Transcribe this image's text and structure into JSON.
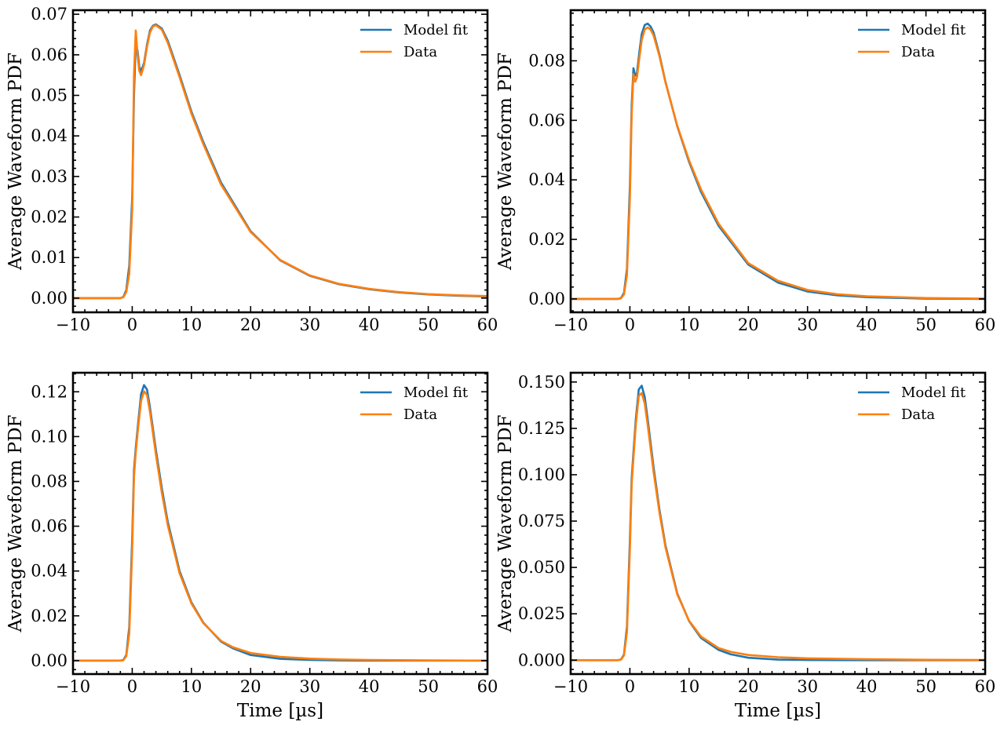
{
  "figure": {
    "title": ""
  },
  "colors": {
    "model": "#1f77b4",
    "data": "#ff7f0e",
    "axis": "#000000",
    "background": "#ffffff"
  },
  "chart_data": [
    {
      "id": "top-left",
      "type": "line",
      "title": "",
      "xlabel": "",
      "ylabel": "Average Waveform PDF",
      "xlim": [
        -10,
        60
      ],
      "ylim": [
        -0.0035,
        0.071
      ],
      "xticks": [
        -10,
        0,
        10,
        20,
        30,
        40,
        50,
        60
      ],
      "xtick_labels": [
        "−10",
        "0",
        "10",
        "20",
        "30",
        "40",
        "50",
        "60"
      ],
      "yticks": [
        0.0,
        0.01,
        0.02,
        0.03,
        0.04,
        0.05,
        0.06,
        0.07
      ],
      "ytick_labels": [
        "0.00",
        "0.01",
        "0.02",
        "0.03",
        "0.04",
        "0.05",
        "0.06",
        "0.07"
      ],
      "legend": {
        "position": "top-right",
        "entries": [
          "Model fit",
          "Data"
        ]
      },
      "grid": false,
      "series": [
        {
          "name": "Model fit",
          "color": "#1f77b4",
          "x": [
            -10,
            -2,
            -1.5,
            -1,
            -0.5,
            0,
            0.3,
            0.6,
            0.9,
            1.2,
            1.5,
            2,
            2.5,
            3,
            3.5,
            4,
            5,
            6,
            8,
            10,
            12,
            15,
            20,
            25,
            30,
            35,
            40,
            45,
            50,
            55,
            60
          ],
          "values": [
            0,
            0,
            0.0003,
            0.002,
            0.008,
            0.025,
            0.05,
            0.063,
            0.061,
            0.057,
            0.056,
            0.058,
            0.0625,
            0.066,
            0.0672,
            0.0675,
            0.0665,
            0.0635,
            0.055,
            0.046,
            0.0385,
            0.0285,
            0.0165,
            0.0093,
            0.0055,
            0.0034,
            0.0022,
            0.0014,
            0.0009,
            0.0006,
            0.0004
          ]
        },
        {
          "name": "Data",
          "color": "#ff7f0e",
          "x": [
            -10,
            -2,
            -1.5,
            -1,
            -0.5,
            0,
            0.3,
            0.6,
            0.9,
            1.2,
            1.5,
            2,
            2.5,
            3,
            3.5,
            4,
            5,
            6,
            8,
            10,
            12,
            15,
            20,
            25,
            30,
            35,
            40,
            45,
            50,
            55,
            60
          ],
          "values": [
            0,
            0,
            0.0002,
            0.0015,
            0.006,
            0.022,
            0.055,
            0.066,
            0.06,
            0.056,
            0.055,
            0.0575,
            0.062,
            0.0655,
            0.067,
            0.0673,
            0.0662,
            0.063,
            0.0545,
            0.0455,
            0.038,
            0.028,
            0.0163,
            0.0094,
            0.0056,
            0.0035,
            0.0023,
            0.0015,
            0.001,
            0.0007,
            0.0005
          ]
        }
      ]
    },
    {
      "id": "top-right",
      "type": "line",
      "title": "",
      "xlabel": "",
      "ylabel": "Average Waveform PDF",
      "xlim": [
        -10,
        60
      ],
      "ylim": [
        -0.0045,
        0.097
      ],
      "xticks": [
        -10,
        0,
        10,
        20,
        30,
        40,
        50,
        60
      ],
      "xtick_labels": [
        "−10",
        "0",
        "10",
        "20",
        "30",
        "40",
        "50",
        "60"
      ],
      "yticks": [
        0.0,
        0.02,
        0.04,
        0.06,
        0.08
      ],
      "ytick_labels": [
        "0.00",
        "0.02",
        "0.04",
        "0.06",
        "0.08"
      ],
      "legend": {
        "position": "top-right",
        "entries": [
          "Model fit",
          "Data"
        ]
      },
      "grid": false,
      "series": [
        {
          "name": "Model fit",
          "color": "#1f77b4",
          "x": [
            -10,
            -2,
            -1.5,
            -1,
            -0.5,
            0,
            0.3,
            0.6,
            0.9,
            1.2,
            1.6,
            2,
            2.5,
            3,
            3.5,
            4,
            5,
            6,
            8,
            10,
            12,
            15,
            20,
            25,
            30,
            35,
            40,
            50,
            60
          ],
          "values": [
            0,
            0,
            0.0003,
            0.002,
            0.01,
            0.038,
            0.065,
            0.0775,
            0.075,
            0.076,
            0.083,
            0.089,
            0.092,
            0.0925,
            0.0915,
            0.0895,
            0.082,
            0.073,
            0.058,
            0.046,
            0.036,
            0.0245,
            0.0115,
            0.0055,
            0.0025,
            0.0012,
            0.0006,
            0.0001,
            0
          ]
        },
        {
          "name": "Data",
          "color": "#ff7f0e",
          "x": [
            -10,
            -2,
            -1.5,
            -1,
            -0.5,
            0,
            0.3,
            0.6,
            0.9,
            1.2,
            1.6,
            2,
            2.5,
            3,
            3.5,
            4,
            5,
            6,
            8,
            10,
            12,
            15,
            20,
            25,
            30,
            35,
            40,
            50,
            60
          ],
          "values": [
            0,
            0,
            0.0002,
            0.0015,
            0.008,
            0.034,
            0.062,
            0.0755,
            0.073,
            0.0745,
            0.081,
            0.087,
            0.0905,
            0.0912,
            0.0905,
            0.0885,
            0.0815,
            0.0728,
            0.0582,
            0.0465,
            0.0368,
            0.0252,
            0.012,
            0.0061,
            0.003,
            0.0016,
            0.0009,
            0.0003,
            0.0001
          ]
        }
      ]
    },
    {
      "id": "bottom-left",
      "type": "line",
      "title": "",
      "xlabel": "Time [µs]",
      "ylabel": "Average Waveform PDF",
      "xlim": [
        -10,
        60
      ],
      "ylim": [
        -0.006,
        0.1285
      ],
      "xticks": [
        -10,
        0,
        10,
        20,
        30,
        40,
        50,
        60
      ],
      "xtick_labels": [
        "−10",
        "0",
        "10",
        "20",
        "30",
        "40",
        "50",
        "60"
      ],
      "yticks": [
        0.0,
        0.02,
        0.04,
        0.06,
        0.08,
        0.1,
        0.12
      ],
      "ytick_labels": [
        "0.00",
        "0.02",
        "0.04",
        "0.06",
        "0.08",
        "0.10",
        "0.12"
      ],
      "legend": {
        "position": "top-right",
        "entries": [
          "Model fit",
          "Data"
        ]
      },
      "grid": false,
      "series": [
        {
          "name": "Model fit",
          "color": "#1f77b4",
          "x": [
            -10,
            -2,
            -1.5,
            -1,
            -0.5,
            0,
            0.3,
            0.6,
            1,
            1.5,
            2,
            2.5,
            3,
            4,
            5,
            6,
            8,
            10,
            12,
            15,
            17,
            20,
            25,
            30,
            35,
            40,
            50,
            60
          ],
          "values": [
            0,
            0,
            0.0003,
            0.0025,
            0.015,
            0.055,
            0.085,
            0.095,
            0.106,
            0.119,
            0.123,
            0.121,
            0.113,
            0.094,
            0.077,
            0.062,
            0.04,
            0.026,
            0.017,
            0.0085,
            0.0055,
            0.0025,
            0.0008,
            0.0003,
            0.0001,
            0,
            0,
            0
          ]
        },
        {
          "name": "Data",
          "color": "#ff7f0e",
          "x": [
            -10,
            -2,
            -1.5,
            -1,
            -0.5,
            0,
            0.3,
            0.6,
            1,
            1.5,
            2,
            2.5,
            3,
            4,
            5,
            6,
            8,
            10,
            12,
            15,
            17,
            20,
            25,
            30,
            35,
            40,
            50,
            60
          ],
          "values": [
            0,
            0,
            0.0002,
            0.002,
            0.012,
            0.05,
            0.082,
            0.093,
            0.104,
            0.116,
            0.1202,
            0.1185,
            0.111,
            0.092,
            0.075,
            0.0605,
            0.039,
            0.0255,
            0.0168,
            0.0088,
            0.006,
            0.0034,
            0.0017,
            0.0009,
            0.0005,
            0.0003,
            0.0001,
            0
          ]
        }
      ]
    },
    {
      "id": "bottom-right",
      "type": "line",
      "title": "",
      "xlabel": "Time [µs]",
      "ylabel": "Average Waveform PDF",
      "xlim": [
        -10,
        60
      ],
      "ylim": [
        -0.0075,
        0.155
      ],
      "xticks": [
        -10,
        0,
        10,
        20,
        30,
        40,
        50,
        60
      ],
      "xtick_labels": [
        "−10",
        "0",
        "10",
        "20",
        "30",
        "40",
        "50",
        "60"
      ],
      "yticks": [
        0.0,
        0.025,
        0.05,
        0.075,
        0.1,
        0.125,
        0.15
      ],
      "ytick_labels": [
        "0.000",
        "0.025",
        "0.050",
        "0.075",
        "0.100",
        "0.125",
        "0.150"
      ],
      "legend": {
        "position": "top-right",
        "entries": [
          "Model fit",
          "Data"
        ]
      },
      "grid": false,
      "series": [
        {
          "name": "Model fit",
          "color": "#1f77b4",
          "x": [
            -10,
            -2,
            -1.5,
            -1,
            -0.5,
            0,
            0.3,
            0.6,
            1,
            1.5,
            2,
            2.5,
            3,
            4,
            5,
            6,
            8,
            10,
            12,
            15,
            17,
            20,
            25,
            30,
            40,
            50,
            60
          ],
          "values": [
            0,
            0,
            0.0004,
            0.003,
            0.018,
            0.065,
            0.098,
            0.112,
            0.13,
            0.146,
            0.148,
            0.142,
            0.13,
            0.104,
            0.081,
            0.062,
            0.036,
            0.021,
            0.012,
            0.0055,
            0.0032,
            0.0013,
            0.0003,
            0.0001,
            0,
            0,
            0
          ]
        },
        {
          "name": "Data",
          "color": "#ff7f0e",
          "x": [
            -10,
            -2,
            -1.5,
            -1,
            -0.5,
            0,
            0.3,
            0.6,
            1,
            1.5,
            2,
            2.5,
            3,
            4,
            5,
            6,
            8,
            10,
            12,
            15,
            17,
            20,
            25,
            30,
            40,
            50,
            60
          ],
          "values": [
            0,
            0,
            0.0003,
            0.0025,
            0.015,
            0.06,
            0.095,
            0.109,
            0.127,
            0.1425,
            0.144,
            0.1385,
            0.127,
            0.1015,
            0.0795,
            0.061,
            0.0355,
            0.0212,
            0.0128,
            0.0065,
            0.0045,
            0.0028,
            0.0016,
            0.001,
            0.0005,
            0.0002,
            0.0001
          ]
        }
      ]
    }
  ]
}
